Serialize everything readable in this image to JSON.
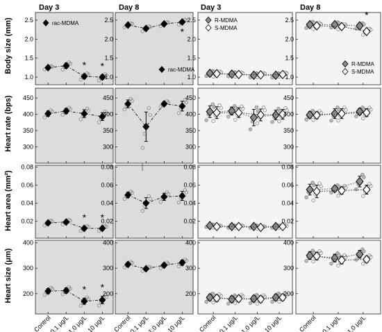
{
  "figure": {
    "columns": [
      {
        "title": "Day 3",
        "groups": [
          "Control",
          "0.1 μg/L",
          "1.0 μg/L",
          "10 μg/L"
        ],
        "series": [
          "rac-MDMA"
        ]
      },
      {
        "title": "Day 8",
        "groups": [
          "Control",
          "0.1 μg/L",
          "1.0 μg/L",
          "10 μg/L"
        ],
        "series": [
          "rac-MDMA"
        ]
      },
      {
        "title": "Day 3",
        "groups": [
          "Control",
          "0.1 μg/L",
          "1.0 μg/L",
          "10 μg/L"
        ],
        "series": [
          "R-MDMA",
          "S-MDMA"
        ]
      },
      {
        "title": "Day 8",
        "groups": [
          "Control",
          "0.1 μg/L",
          "1.0 μg/L"
        ],
        "series": [
          "R-MDMA",
          "S-MDMA"
        ]
      }
    ],
    "rows": [
      {
        "ylabel": "Body size (mm)",
        "ylim": [
          0.8,
          2.7
        ],
        "ticks": [
          "1.0",
          "1.5",
          "2.0",
          "2.5"
        ]
      },
      {
        "ylabel": "Heart rate (bps)",
        "ylim": [
          250,
          480
        ],
        "ticks": [
          "300",
          "350",
          "400",
          "450"
        ]
      },
      {
        "ylabel": "Heart area (mm²)",
        "ylim": [
          0.001,
          0.082
        ],
        "ticks": [
          "0.02",
          "0.04",
          "0.06",
          "0.08"
        ]
      },
      {
        "ylabel": "Heart size (μm)",
        "ylim": [
          120,
          410
        ],
        "ticks": [
          "200",
          "300",
          "400"
        ]
      }
    ],
    "legend_rac": "rac-MDMA",
    "legend_r": "R-MDMA",
    "legend_s": "S-MDMA",
    "significance_mark": "*",
    "colors": {
      "panel_bg_left": "#dcdcdc",
      "panel_bg_right": "#f4f4f4",
      "mean_fill": "#000000",
      "r_fill": "#8c8c8c",
      "s_fill": "#ffffff"
    }
  },
  "chart_data": [
    {
      "type": "scatter",
      "panel": "row1-col1",
      "categories": [
        "Control",
        "0.1 μg/L",
        "1.0 μg/L",
        "10 μg/L"
      ],
      "series": [
        {
          "name": "rac-MDMA",
          "mean": [
            1.25,
            1.3,
            1.02,
            1.0
          ],
          "err": [
            0.03,
            0.07,
            0.06,
            0.06
          ]
        }
      ],
      "significant": [
        false,
        false,
        true,
        true
      ]
    },
    {
      "type": "scatter",
      "panel": "row1-col2",
      "categories": [
        "Control",
        "0.1 μg/L",
        "1.0 μg/L",
        "10 μg/L"
      ],
      "series": [
        {
          "name": "rac-MDMA",
          "mean": [
            2.37,
            2.28,
            2.4,
            2.45
          ],
          "err": [
            0.04,
            0.05,
            0.04,
            0.05
          ]
        }
      ],
      "significant": [
        false,
        false,
        false,
        true
      ]
    },
    {
      "type": "scatter",
      "panel": "row1-col3",
      "categories": [
        "Control",
        "0.1 μg/L",
        "1.0 μg/L",
        "10 μg/L"
      ],
      "series": [
        {
          "name": "R-MDMA",
          "mean": [
            1.1,
            1.08,
            1.05,
            1.05
          ],
          "err": [
            0.05,
            0.04,
            0.04,
            0.04
          ]
        },
        {
          "name": "S-MDMA",
          "mean": [
            1.09,
            1.07,
            1.06,
            1.07
          ],
          "err": [
            0.05,
            0.04,
            0.04,
            0.04
          ]
        }
      ],
      "significant": [
        false,
        false,
        false,
        false
      ]
    },
    {
      "type": "scatter",
      "panel": "row1-col4",
      "categories": [
        "Control",
        "0.1 μg/L",
        "1.0 μg/L"
      ],
      "series": [
        {
          "name": "R-MDMA",
          "mean": [
            2.38,
            2.38,
            2.35
          ],
          "err": [
            0.06,
            0.05,
            0.05
          ]
        },
        {
          "name": "S-MDMA",
          "mean": [
            2.35,
            2.33,
            2.2
          ],
          "err": [
            0.06,
            0.05,
            0.06
          ]
        }
      ],
      "significant": [
        false,
        false,
        true
      ]
    },
    {
      "type": "scatter",
      "panel": "row2-col1",
      "categories": [
        "Control",
        "0.1 μg/L",
        "1.0 μg/L",
        "10 μg/L"
      ],
      "series": [
        {
          "name": "rac-MDMA",
          "mean": [
            402,
            410,
            402,
            393
          ],
          "err": [
            8,
            8,
            12,
            12
          ]
        }
      ],
      "significant": [
        false,
        false,
        false,
        false
      ]
    },
    {
      "type": "scatter",
      "panel": "row2-col2",
      "categories": [
        "Control",
        "0.1 μg/L",
        "1.0 μg/L",
        "10 μg/L"
      ],
      "series": [
        {
          "name": "rac-MDMA",
          "mean": [
            432,
            362,
            432,
            425
          ],
          "err": [
            12,
            45,
            6,
            15
          ]
        }
      ],
      "significant": [
        false,
        false,
        false,
        false
      ]
    },
    {
      "type": "scatter",
      "panel": "row2-col3",
      "categories": [
        "Control",
        "0.1 μg/L",
        "1.0 μg/L",
        "10 μg/L"
      ],
      "series": [
        {
          "name": "R-MDMA",
          "mean": [
            408,
            410,
            390,
            398
          ],
          "err": [
            18,
            12,
            25,
            15
          ]
        },
        {
          "name": "S-MDMA",
          "mean": [
            405,
            405,
            398,
            400
          ],
          "err": [
            18,
            15,
            18,
            15
          ]
        }
      ],
      "significant": [
        false,
        false,
        false,
        false
      ]
    },
    {
      "type": "scatter",
      "panel": "row2-col4",
      "categories": [
        "Control",
        "0.1 μg/L",
        "1.0 μg/L"
      ],
      "series": [
        {
          "name": "R-MDMA",
          "mean": [
            398,
            402,
            408
          ],
          "err": [
            10,
            15,
            10
          ]
        },
        {
          "name": "S-MDMA",
          "mean": [
            397,
            402,
            405
          ],
          "err": [
            10,
            15,
            12
          ]
        }
      ],
      "significant": [
        false,
        false,
        false
      ]
    },
    {
      "type": "scatter",
      "panel": "row3-col1",
      "categories": [
        "Control",
        "0.1 μg/L",
        "1.0 μg/L",
        "10 μg/L"
      ],
      "series": [
        {
          "name": "rac-MDMA",
          "mean": [
            0.018,
            0.019,
            0.012,
            0.012
          ],
          "err": [
            0.002,
            0.002,
            0.002,
            0.002
          ]
        }
      ],
      "significant": [
        false,
        false,
        true,
        true
      ]
    },
    {
      "type": "scatter",
      "panel": "row3-col2",
      "categories": [
        "Control",
        "0.1 μg/L",
        "1.0 μg/L",
        "10 μg/L"
      ],
      "series": [
        {
          "name": "rac-MDMA",
          "mean": [
            0.049,
            0.04,
            0.047,
            0.048
          ],
          "err": [
            0.003,
            0.006,
            0.004,
            0.005
          ]
        }
      ],
      "significant": [
        false,
        false,
        false,
        false
      ]
    },
    {
      "type": "scatter",
      "panel": "row3-col3",
      "categories": [
        "Control",
        "0.1 μg/L",
        "1.0 μg/L",
        "10 μg/L"
      ],
      "series": [
        {
          "name": "R-MDMA",
          "mean": [
            0.015,
            0.014,
            0.014,
            0.014
          ],
          "err": [
            0.001,
            0.001,
            0.001,
            0.001
          ]
        },
        {
          "name": "S-MDMA",
          "mean": [
            0.014,
            0.014,
            0.013,
            0.014
          ],
          "err": [
            0.001,
            0.001,
            0.001,
            0.001
          ]
        }
      ],
      "significant": [
        false,
        false,
        false,
        false
      ]
    },
    {
      "type": "scatter",
      "panel": "row3-col4",
      "categories": [
        "Control",
        "0.1 μg/L",
        "1.0 μg/L"
      ],
      "series": [
        {
          "name": "R-MDMA",
          "mean": [
            0.055,
            0.056,
            0.064
          ],
          "err": [
            0.006,
            0.003,
            0.006
          ]
        },
        {
          "name": "S-MDMA",
          "mean": [
            0.053,
            0.054,
            0.055
          ],
          "err": [
            0.007,
            0.004,
            0.005
          ]
        }
      ],
      "significant": [
        false,
        false,
        false
      ]
    },
    {
      "type": "scatter",
      "panel": "row4-col1",
      "categories": [
        "Control",
        "0.1 μg/L",
        "1.0 μg/L",
        "10 μg/L"
      ],
      "series": [
        {
          "name": "rac-MDMA",
          "mean": [
            210,
            212,
            170,
            175
          ],
          "err": [
            10,
            10,
            12,
            15
          ]
        }
      ],
      "significant": [
        false,
        false,
        true,
        true
      ]
    },
    {
      "type": "scatter",
      "panel": "row4-col2",
      "categories": [
        "Control",
        "0.1 μg/L",
        "1.0 μg/L",
        "10 μg/L"
      ],
      "series": [
        {
          "name": "rac-MDMA",
          "mean": [
            315,
            298,
            312,
            322
          ],
          "err": [
            8,
            6,
            8,
            10
          ]
        }
      ],
      "significant": [
        false,
        false,
        false,
        false
      ]
    },
    {
      "type": "scatter",
      "panel": "row4-col3",
      "categories": [
        "Control",
        "0.1 μg/L",
        "1.0 μg/L",
        "10 μg/L"
      ],
      "series": [
        {
          "name": "R-MDMA",
          "mean": [
            185,
            178,
            180,
            185
          ],
          "err": [
            12,
            12,
            12,
            12
          ]
        },
        {
          "name": "S-MDMA",
          "mean": [
            182,
            180,
            178,
            185
          ],
          "err": [
            12,
            12,
            12,
            12
          ]
        }
      ],
      "significant": [
        false,
        false,
        false,
        false
      ]
    },
    {
      "type": "scatter",
      "panel": "row4-col4",
      "categories": [
        "Control",
        "0.1 μg/L",
        "1.0 μg/L"
      ],
      "series": [
        {
          "name": "R-MDMA",
          "mean": [
            350,
            340,
            355
          ],
          "err": [
            15,
            15,
            15
          ]
        },
        {
          "name": "S-MDMA",
          "mean": [
            348,
            332,
            335
          ],
          "err": [
            15,
            15,
            12
          ]
        }
      ],
      "significant": [
        false,
        false,
        false
      ]
    }
  ]
}
